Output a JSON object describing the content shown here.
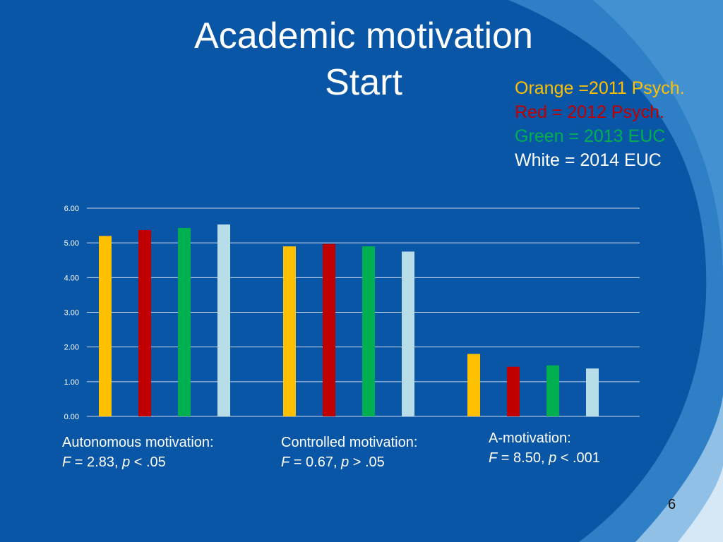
{
  "slide": {
    "title_line1": "Academic motivation",
    "title_line2": "Start",
    "page_number": "6"
  },
  "legend": [
    {
      "text": "Orange =2011 Psych.",
      "color": "#ffc000"
    },
    {
      "text": "Red = 2012 Psych.",
      "color": "#c00000"
    },
    {
      "text": "Green = 2013 EUC",
      "color": "#00b050"
    },
    {
      "text": "White = 2014 EUC",
      "color": "#ffffff"
    }
  ],
  "stats": [
    {
      "title": "Autonomous motivation:",
      "f_symbol": "F",
      "f_text": " = 2.83, ",
      "p_symbol": "p",
      "p_text": " < .05"
    },
    {
      "title": "Controlled motivation:",
      "f_symbol": "F",
      "f_text": " = 0.67, ",
      "p_symbol": "p",
      "p_text": " > .05"
    },
    {
      "title": "A-motivation:",
      "f_symbol": "F",
      "f_text": " = 8.50, ",
      "p_symbol": "p",
      "p_text": " < .001"
    }
  ],
  "chart_data": {
    "type": "bar",
    "categories": [
      "Autonomous motivation",
      "Controlled motivation",
      "A-motivation"
    ],
    "series": [
      {
        "values": [
          5.2,
          4.9,
          1.8
        ],
        "color": "#ffc000"
      },
      {
        "values": [
          5.37,
          4.97,
          1.43
        ],
        "color": "#c00000"
      },
      {
        "values": [
          5.43,
          4.9,
          1.47
        ],
        "color": "#00b050"
      },
      {
        "values": [
          5.53,
          4.75,
          1.38
        ],
        "color": "#b7dde8"
      }
    ],
    "ylim": [
      0,
      6
    ],
    "yticks": [
      "0.00",
      "1.00",
      "2.00",
      "3.00",
      "4.00",
      "5.00",
      "6.00"
    ],
    "grid": true
  }
}
